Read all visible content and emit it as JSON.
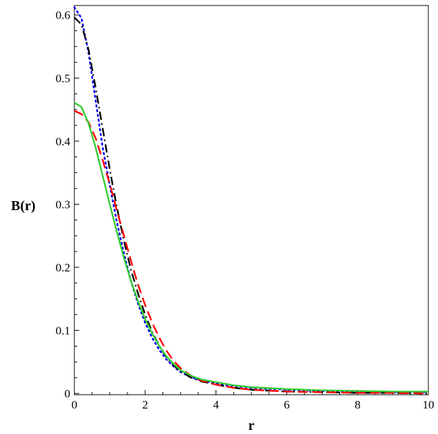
{
  "chart_data": {
    "type": "line",
    "xlabel": "r",
    "ylabel": "B(r)",
    "xlim": [
      0,
      10
    ],
    "ylim": [
      -0.002,
      0.615
    ],
    "xticks": [
      0,
      2,
      4,
      6,
      8,
      10
    ],
    "yticks": [
      0,
      0.1,
      0.2,
      0.3,
      0.4,
      0.5,
      0.6
    ],
    "ytick_labels": [
      "0",
      "0.1",
      "0.2",
      "0.3",
      "0.4",
      "0.5",
      "0.6"
    ],
    "grid": false,
    "legend": "none",
    "series": [
      {
        "color": "#0000ff",
        "style": "dotted",
        "x": [
          0.0,
          0.2,
          0.4,
          0.6,
          0.8,
          1.0,
          1.2,
          1.4,
          1.6,
          1.8,
          2.0,
          2.2,
          2.4,
          2.6,
          2.8,
          3.0,
          3.3,
          3.6,
          4.0,
          4.5,
          5.0,
          6.0,
          7.0,
          8.0,
          9.0,
          10.0
        ],
        "y": [
          0.612,
          0.595,
          0.54,
          0.465,
          0.39,
          0.33,
          0.272,
          0.222,
          0.178,
          0.142,
          0.112,
          0.088,
          0.069,
          0.054,
          0.043,
          0.034,
          0.026,
          0.02,
          0.016,
          0.012,
          0.009,
          0.006,
          0.004,
          0.003,
          0.002,
          0.002
        ]
      },
      {
        "color": "#000000",
        "style": "dashdot",
        "x": [
          0.0,
          0.2,
          0.4,
          0.6,
          0.8,
          1.0,
          1.2,
          1.4,
          1.6,
          1.8,
          2.0,
          2.2,
          2.4,
          2.6,
          2.8,
          3.0,
          3.3,
          3.6,
          4.0,
          4.5,
          5.0,
          6.0,
          7.0,
          8.0,
          9.0,
          10.0
        ],
        "y": [
          0.596,
          0.585,
          0.545,
          0.485,
          0.42,
          0.355,
          0.295,
          0.242,
          0.196,
          0.158,
          0.125,
          0.097,
          0.075,
          0.058,
          0.045,
          0.035,
          0.025,
          0.019,
          0.014,
          0.009,
          0.006,
          0.003,
          0.002,
          0.001,
          0.001,
          0.0
        ]
      },
      {
        "color": "#ff0000",
        "style": "dashed",
        "x": [
          0.0,
          0.2,
          0.4,
          0.6,
          0.8,
          1.0,
          1.2,
          1.4,
          1.6,
          1.8,
          2.0,
          2.2,
          2.4,
          2.6,
          2.8,
          3.0,
          3.3,
          3.6,
          4.0,
          4.5,
          5.0,
          6.0,
          7.0,
          8.0,
          9.0,
          10.0
        ],
        "y": [
          0.448,
          0.443,
          0.43,
          0.405,
          0.37,
          0.332,
          0.29,
          0.25,
          0.21,
          0.172,
          0.14,
          0.112,
          0.088,
          0.068,
          0.052,
          0.04,
          0.028,
          0.02,
          0.014,
          0.009,
          0.006,
          0.003,
          0.002,
          0.001,
          0.001,
          0.0
        ]
      },
      {
        "color": "#33cc33",
        "style": "solid",
        "x": [
          0.0,
          0.2,
          0.4,
          0.6,
          0.8,
          1.0,
          1.2,
          1.4,
          1.6,
          1.8,
          2.0,
          2.2,
          2.4,
          2.6,
          2.8,
          3.0,
          3.3,
          3.6,
          4.0,
          4.5,
          5.0,
          6.0,
          7.0,
          8.0,
          9.0,
          10.0
        ],
        "y": [
          0.461,
          0.454,
          0.428,
          0.39,
          0.345,
          0.3,
          0.256,
          0.215,
          0.178,
          0.146,
          0.118,
          0.095,
          0.075,
          0.059,
          0.047,
          0.037,
          0.028,
          0.022,
          0.018,
          0.013,
          0.01,
          0.007,
          0.005,
          0.004,
          0.003,
          0.003
        ]
      }
    ]
  }
}
